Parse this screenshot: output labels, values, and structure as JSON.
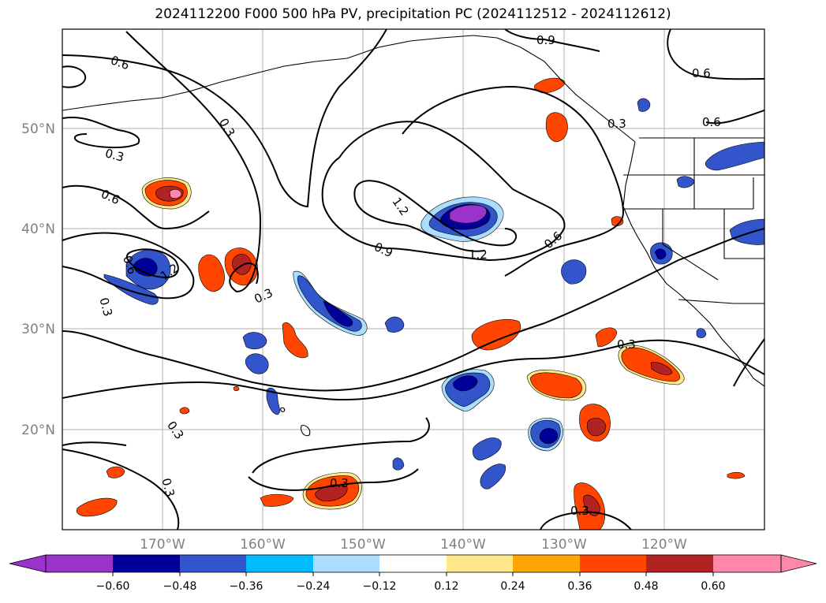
{
  "title": "2024112200 F000 500 hPa PV, precipitation PC (2024112512 - 2024112612)",
  "lat_ticks": [
    "50°N",
    "40°N",
    "30°N",
    "20°N"
  ],
  "lon_ticks": [
    "170°W",
    "160°W",
    "150°W",
    "140°W",
    "130°W",
    "120°W"
  ],
  "contour_labels": {
    "c1": "0.6",
    "c2": "0.9",
    "c3": "0.6",
    "c4": "0.6",
    "c5": "0.3",
    "c6": "0.3",
    "c7": "0.3",
    "c8": "0.6",
    "c9": "1.2",
    "c10": "0.9",
    "c11": "1.2",
    "c12": "0.6",
    "c13": "0.6",
    "c14": "1.2",
    "c15": "0.3",
    "c16": "0.3",
    "c17": "0.3",
    "c18": "0.3",
    "c19": "0.3",
    "c20": "0.3",
    "c21": "0.3"
  },
  "colorbar": {
    "ticks": [
      "−0.60",
      "−0.48",
      "−0.36",
      "−0.24",
      "−0.12",
      "0.12",
      "0.24",
      "0.36",
      "0.48",
      "0.60"
    ],
    "colors": [
      "#9933cc",
      "#000099",
      "#3355cc",
      "#00bbff",
      "#aaddff",
      "#ffffff",
      "#ffe88a",
      "#ffa500",
      "#ff4500",
      "#b22222",
      "#ff88aa"
    ]
  },
  "precip_colors": {
    "neg_light": "#aaddff",
    "neg_cyan": "#00bbff",
    "neg_mid": "#3355cc",
    "neg_dark": "#000099",
    "neg_purple": "#9933cc",
    "pos_yellow": "#ffe88a",
    "pos_orange": "#ffa500",
    "pos_red": "#ff4500",
    "pos_dark": "#b22222",
    "pos_pink": "#ff88aa"
  }
}
